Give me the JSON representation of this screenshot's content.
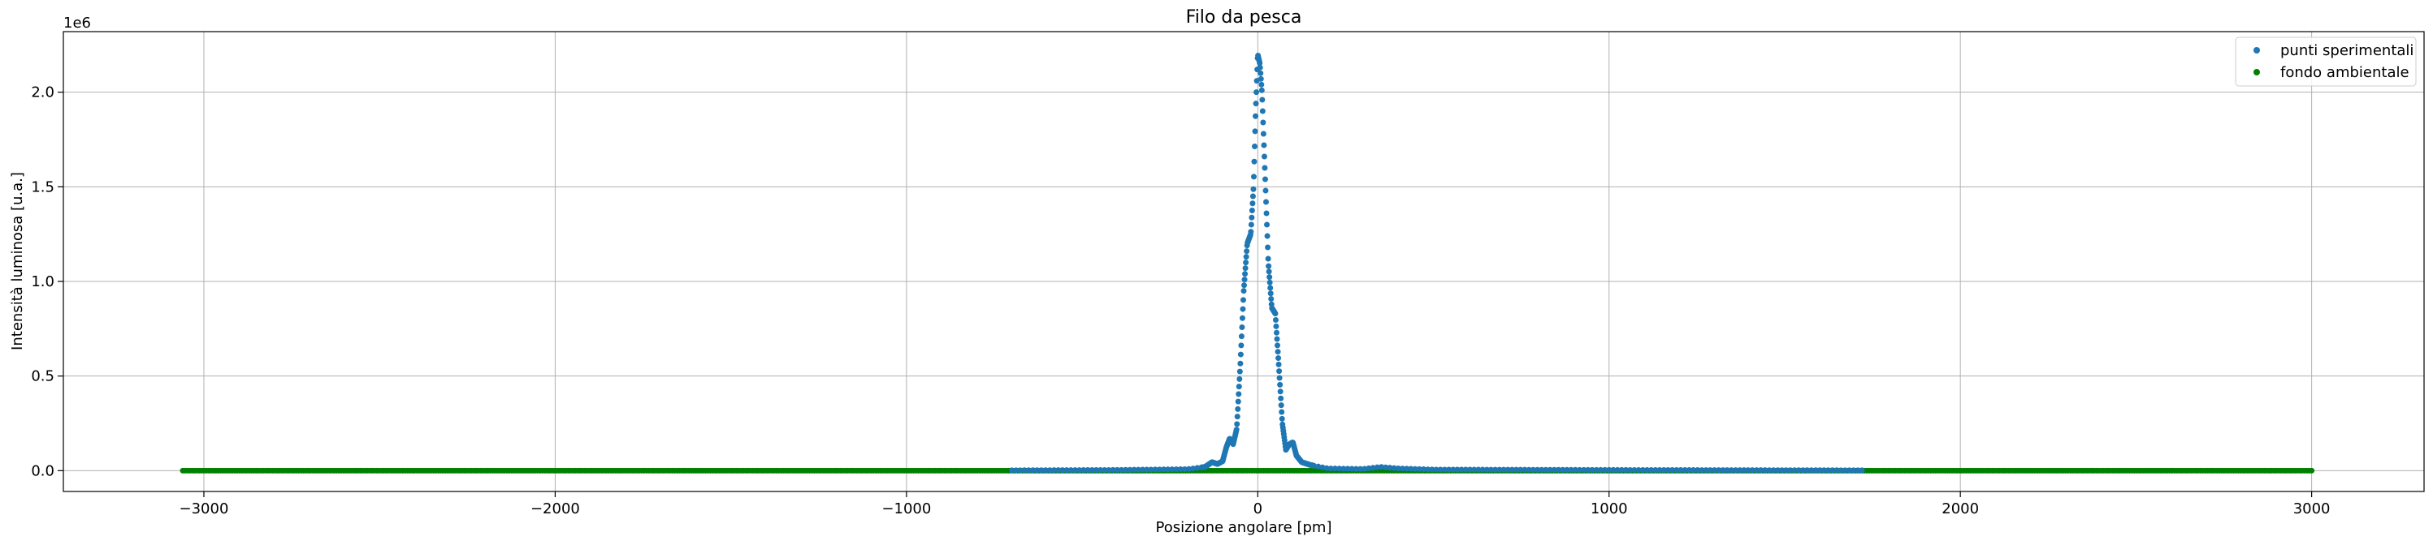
{
  "chart_data": {
    "type": "scatter",
    "title": "Filo da pesca",
    "xlabel": "Posizione angolare [pm]",
    "ylabel": "Intensità luminosa [u.a.]",
    "y_offset_text": "1e6",
    "xlim": [
      -3400,
      3320
    ],
    "ylim": [
      -0.11,
      2.32
    ],
    "y_scale_factor": 1000000,
    "x_ticks": [
      -3000,
      -2000,
      -1000,
      0,
      1000,
      2000,
      3000
    ],
    "x_tick_labels": [
      "−3000",
      "−2000",
      "−1000",
      "0",
      "1000",
      "2000",
      "3000"
    ],
    "y_ticks": [
      0.0,
      0.5,
      1.0,
      1.5,
      2.0
    ],
    "y_tick_labels": [
      "0.0",
      "0.5",
      "1.0",
      "1.5",
      "2.0"
    ],
    "grid": true,
    "legend_position": "top-right",
    "series": [
      {
        "name": "punti sperimentali",
        "color": "#1f77b4",
        "marker": "point",
        "x_range": [
          -700,
          1730
        ],
        "profile": [
          [
            -700,
            0.002
          ],
          [
            -400,
            0.004
          ],
          [
            -300,
            0.006
          ],
          [
            -200,
            0.008
          ],
          [
            -150,
            0.02
          ],
          [
            -130,
            0.045
          ],
          [
            -115,
            0.035
          ],
          [
            -100,
            0.05
          ],
          [
            -90,
            0.12
          ],
          [
            -80,
            0.17
          ],
          [
            -70,
            0.14
          ],
          [
            -60,
            0.22
          ],
          [
            -50,
            0.55
          ],
          [
            -40,
            0.95
          ],
          [
            -30,
            1.2
          ],
          [
            -20,
            1.25
          ],
          [
            -12,
            1.5
          ],
          [
            -6,
            1.9
          ],
          [
            0,
            2.2
          ],
          [
            6,
            2.15
          ],
          [
            12,
            2.0
          ],
          [
            20,
            1.6
          ],
          [
            30,
            1.1
          ],
          [
            40,
            0.86
          ],
          [
            50,
            0.83
          ],
          [
            60,
            0.55
          ],
          [
            70,
            0.25
          ],
          [
            80,
            0.11
          ],
          [
            90,
            0.14
          ],
          [
            100,
            0.15
          ],
          [
            110,
            0.08
          ],
          [
            125,
            0.045
          ],
          [
            150,
            0.03
          ],
          [
            200,
            0.012
          ],
          [
            300,
            0.009
          ],
          [
            350,
            0.02
          ],
          [
            400,
            0.012
          ],
          [
            500,
            0.006
          ],
          [
            1000,
            0.004
          ],
          [
            1730,
            0.002
          ]
        ]
      },
      {
        "name": "fondo ambientale",
        "color": "#008000",
        "marker": "point",
        "x_range": [
          -3060,
          3000
        ],
        "constant_value": 0.0
      }
    ]
  }
}
